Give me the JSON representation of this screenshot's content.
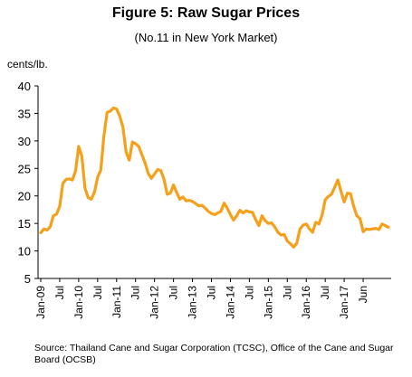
{
  "chart_data": {
    "type": "line",
    "title": "Figure 5: Raw Sugar Prices",
    "subtitle": "(No.11 in New York Market)",
    "ylabel": "cents/lb.",
    "ylim": [
      5,
      40
    ],
    "yticks": [
      5,
      10,
      15,
      20,
      25,
      30,
      35,
      40
    ],
    "xticks": [
      "Jan-09",
      "Jul",
      "Jan-10",
      "Jul",
      "Jan-11",
      "Jul",
      "Jan-12",
      "Jul",
      "Jan-13",
      "Jul",
      "Jan-14",
      "Jul",
      "Jan-15",
      "Jul",
      "Jan-16",
      "Jul",
      "Jan-17",
      "Jun"
    ],
    "series": [
      {
        "color": "#F5A01A",
        "values": [
          13.3,
          14.0,
          13.8,
          14.4,
          16.4,
          16.7,
          18.1,
          22.3,
          23.0,
          23.1,
          22.9,
          24.5,
          29.0,
          27.2,
          21.4,
          19.7,
          19.4,
          20.7,
          23.4,
          24.7,
          31.0,
          35.2,
          35.4,
          36.0,
          35.8,
          34.5,
          32.5,
          28.0,
          26.5,
          29.8,
          29.5,
          29.0,
          27.5,
          26.0,
          24.1,
          23.2,
          24.0,
          24.8,
          24.6,
          23.0,
          20.3,
          20.5,
          22.0,
          20.6,
          19.4,
          19.8,
          19.1,
          19.2,
          19.0,
          18.6,
          18.2,
          18.3,
          17.8,
          17.2,
          16.8,
          16.6,
          16.9,
          17.2,
          18.7,
          17.8,
          16.6,
          15.6,
          16.4,
          17.4,
          16.9,
          17.3,
          17.1,
          17.0,
          15.7,
          14.6,
          16.4,
          15.5,
          15.0,
          15.1,
          14.4,
          13.4,
          12.9,
          13.0,
          11.8,
          11.3,
          10.7,
          11.4,
          14.0,
          14.7,
          14.9,
          14.0,
          13.4,
          15.2,
          14.9,
          16.5,
          19.3,
          19.9,
          20.3,
          21.6,
          22.9,
          20.8,
          18.9,
          20.5,
          20.4,
          18.1,
          16.4,
          15.9,
          13.5,
          14.0,
          13.9,
          14.0,
          14.1,
          13.9,
          14.9,
          14.6,
          14.3
        ]
      }
    ]
  },
  "source": "Source: Thailand Cane and Sugar Corporation (TCSC), Office of the Cane and Sugar Board (OCSB)"
}
